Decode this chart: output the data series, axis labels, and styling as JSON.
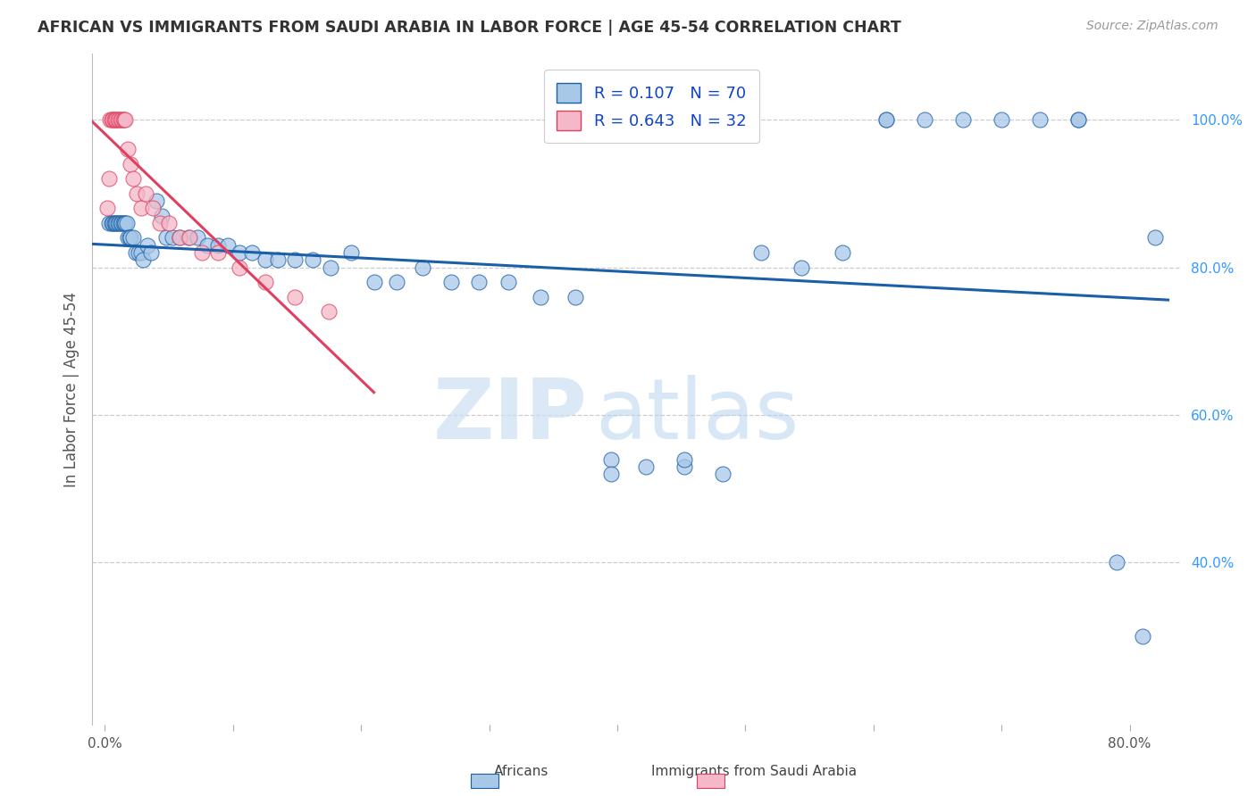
{
  "title": "AFRICAN VS IMMIGRANTS FROM SAUDI ARABIA IN LABOR FORCE | AGE 45-54 CORRELATION CHART",
  "source": "Source: ZipAtlas.com",
  "ylabel": "In Labor Force | Age 45-54",
  "x_ticks": [
    0.0,
    0.1,
    0.2,
    0.3,
    0.4,
    0.5,
    0.6,
    0.7,
    0.8
  ],
  "x_tick_labels": [
    "0.0%",
    "",
    "",
    "",
    "",
    "",
    "",
    "",
    "80.0%"
  ],
  "y_ticks_right": [
    0.4,
    0.6,
    0.8,
    1.0
  ],
  "y_tick_labels_right": [
    "40.0%",
    "60.0%",
    "80.0%",
    "100.0%"
  ],
  "xlim": [
    -0.01,
    0.84
  ],
  "ylim": [
    0.18,
    1.09
  ],
  "blue_color": "#a8c8e8",
  "pink_color": "#f4b8c8",
  "blue_line_color": "#1a5fa8",
  "pink_line_color": "#e04060",
  "legend_blue_label": "R = 0.107   N = 70",
  "legend_pink_label": "R = 0.643   N = 32",
  "legend_label_africans": "Africans",
  "legend_label_saudi": "Immigrants from Saudi Arabia",
  "blue_x": [
    0.003,
    0.005,
    0.006,
    0.007,
    0.008,
    0.009,
    0.01,
    0.011,
    0.012,
    0.013,
    0.014,
    0.015,
    0.016,
    0.017,
    0.018,
    0.019,
    0.02,
    0.022,
    0.024,
    0.026,
    0.028,
    0.03,
    0.033,
    0.036,
    0.04,
    0.044,
    0.048,
    0.053,
    0.058,
    0.065,
    0.072,
    0.08,
    0.088,
    0.096,
    0.105,
    0.115,
    0.125,
    0.135,
    0.148,
    0.162,
    0.176,
    0.192,
    0.21,
    0.228,
    0.248,
    0.27,
    0.292,
    0.315,
    0.34,
    0.367,
    0.395,
    0.395,
    0.422,
    0.452,
    0.452,
    0.482,
    0.512,
    0.544,
    0.576,
    0.61,
    0.61,
    0.64,
    0.67,
    0.7,
    0.73,
    0.76,
    0.76,
    0.79,
    0.81,
    0.82
  ],
  "blue_y": [
    0.86,
    0.86,
    0.86,
    0.86,
    0.86,
    0.86,
    0.86,
    0.86,
    0.86,
    0.86,
    0.86,
    0.86,
    0.86,
    0.86,
    0.84,
    0.84,
    0.84,
    0.84,
    0.82,
    0.82,
    0.82,
    0.81,
    0.83,
    0.82,
    0.89,
    0.87,
    0.84,
    0.84,
    0.84,
    0.84,
    0.84,
    0.83,
    0.83,
    0.83,
    0.82,
    0.82,
    0.81,
    0.81,
    0.81,
    0.81,
    0.8,
    0.82,
    0.78,
    0.78,
    0.8,
    0.78,
    0.78,
    0.78,
    0.76,
    0.76,
    0.54,
    0.52,
    0.53,
    0.53,
    0.54,
    0.52,
    0.82,
    0.8,
    0.82,
    1.0,
    1.0,
    1.0,
    1.0,
    1.0,
    1.0,
    1.0,
    1.0,
    0.4,
    0.3,
    0.84
  ],
  "pink_x": [
    0.002,
    0.003,
    0.004,
    0.005,
    0.006,
    0.007,
    0.008,
    0.009,
    0.01,
    0.011,
    0.012,
    0.013,
    0.014,
    0.015,
    0.016,
    0.018,
    0.02,
    0.022,
    0.025,
    0.028,
    0.032,
    0.037,
    0.043,
    0.05,
    0.058,
    0.066,
    0.076,
    0.088,
    0.105,
    0.125,
    0.148,
    0.175
  ],
  "pink_y": [
    0.88,
    0.92,
    1.0,
    1.0,
    1.0,
    1.0,
    1.0,
    1.0,
    1.0,
    1.0,
    1.0,
    1.0,
    1.0,
    1.0,
    1.0,
    0.96,
    0.94,
    0.92,
    0.9,
    0.88,
    0.9,
    0.88,
    0.86,
    0.86,
    0.84,
    0.84,
    0.82,
    0.82,
    0.8,
    0.78,
    0.76,
    0.74
  ]
}
